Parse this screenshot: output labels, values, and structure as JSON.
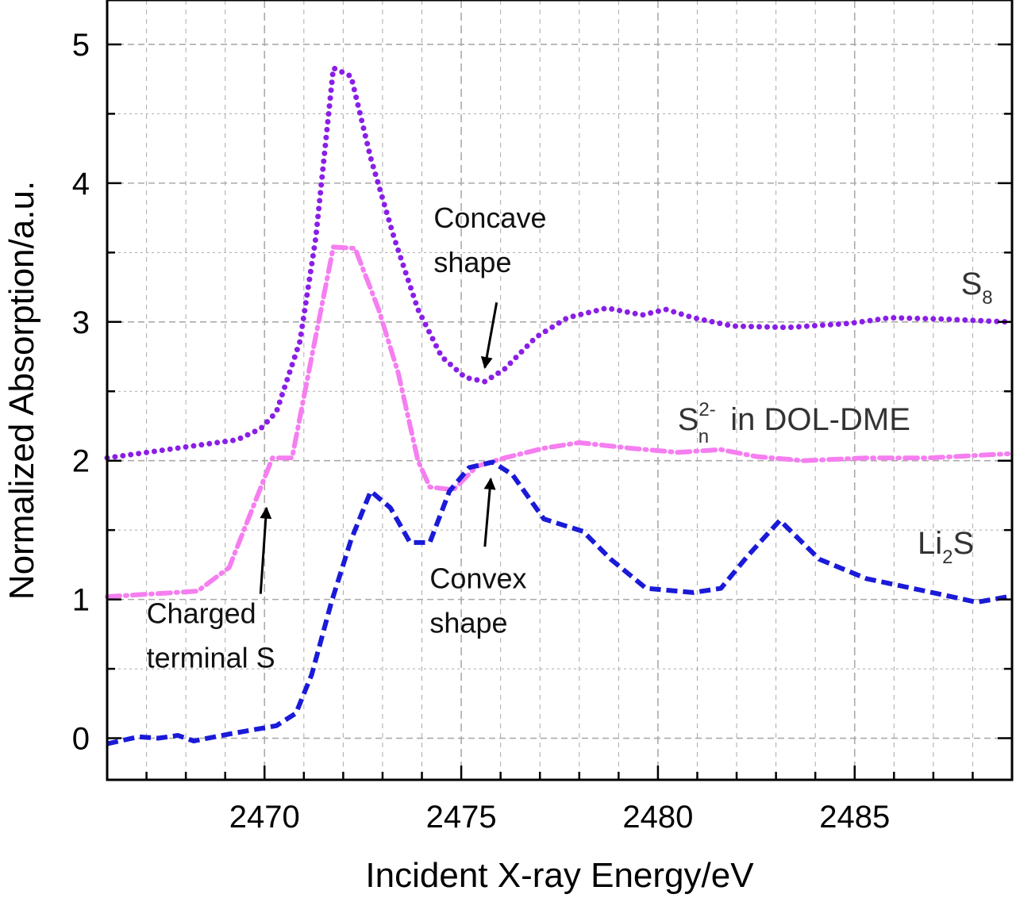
{
  "chart_data": {
    "type": "line",
    "xlabel": "Incident X-ray Energy/eV",
    "ylabel": "Normalized Absorption/a.u.",
    "xlim": [
      2466,
      2489
    ],
    "ylim": [
      -0.3,
      5.32
    ],
    "xticks": [
      2470,
      2475,
      2480,
      2485
    ],
    "yticks": [
      0,
      1,
      2,
      3,
      4,
      5
    ],
    "grid": true,
    "series": [
      {
        "name": "S8",
        "color": "#8a1ee6",
        "style": "dotted",
        "x": [
          2466,
          2469.3,
          2469.9,
          2470.3,
          2470.9,
          2471.3,
          2471.75,
          2472.2,
          2472.7,
          2473.3,
          2473.9,
          2474.5,
          2475.1,
          2475.6,
          2476.1,
          2476.9,
          2477.7,
          2478.7,
          2479.6,
          2480.2,
          2480.9,
          2481.9,
          2483.3,
          2484.9,
          2485.9,
          2487.3,
          2488.9
        ],
        "y": [
          2.02,
          2.15,
          2.23,
          2.35,
          2.86,
          3.6,
          4.83,
          4.77,
          4.18,
          3.6,
          3.09,
          2.75,
          2.6,
          2.57,
          2.66,
          2.89,
          3.03,
          3.1,
          3.05,
          3.09,
          3.03,
          2.97,
          2.96,
          2.99,
          3.03,
          3.02,
          3.0
        ]
      },
      {
        "name": "Sn2- in DOL-DME",
        "color": "#f57ef0",
        "style": "dashdot",
        "x": [
          2466,
          2468.3,
          2469.1,
          2469.7,
          2470.2,
          2470.7,
          2471.2,
          2471.75,
          2472.3,
          2472.9,
          2473.4,
          2473.9,
          2474.2,
          2474.8,
          2475.4,
          2476.1,
          2477.1,
          2478.0,
          2479.3,
          2480.5,
          2481.6,
          2482.5,
          2483.7,
          2485.3,
          2486.9,
          2488.9
        ],
        "y": [
          1.02,
          1.06,
          1.23,
          1.66,
          2.02,
          2.02,
          2.75,
          3.54,
          3.53,
          3.09,
          2.63,
          2.0,
          1.81,
          1.79,
          1.96,
          2.02,
          2.09,
          2.13,
          2.09,
          2.06,
          2.08,
          2.03,
          2.0,
          2.02,
          2.02,
          2.05
        ]
      },
      {
        "name": "Li2S",
        "color": "#1a1ad8",
        "style": "dashed",
        "x": [
          2466,
          2466.8,
          2467.3,
          2467.8,
          2468.2,
          2469.1,
          2469.9,
          2470.3,
          2470.8,
          2471.2,
          2471.7,
          2472.2,
          2472.7,
          2473.2,
          2473.7,
          2474.2,
          2474.7,
          2475.2,
          2475.8,
          2476.3,
          2477.1,
          2478.1,
          2478.8,
          2479.7,
          2480.9,
          2481.6,
          2482.3,
          2483.1,
          2484.1,
          2485.3,
          2486.3,
          2487.3,
          2488.1,
          2488.9
        ],
        "y": [
          -0.04,
          0.01,
          0,
          0.02,
          -0.02,
          0.03,
          0.07,
          0.09,
          0.18,
          0.46,
          0.98,
          1.43,
          1.78,
          1.66,
          1.41,
          1.41,
          1.78,
          1.95,
          1.99,
          1.9,
          1.58,
          1.49,
          1.29,
          1.08,
          1.05,
          1.08,
          1.32,
          1.57,
          1.29,
          1.15,
          1.09,
          1.03,
          0.98,
          1.02
        ]
      }
    ],
    "series_labels": [
      {
        "main": "S",
        "sub": "8",
        "x": 2487.7,
        "y": 3.2
      },
      {
        "main": "S",
        "sub": "n",
        "sup": "2-",
        "rest": " in DOL-DME",
        "x": 2480.5,
        "y": 2.22
      },
      {
        "main": "Li",
        "sub": "2",
        "rest": "S",
        "x": 2486.6,
        "y": 1.33
      }
    ],
    "annotations": [
      {
        "lines": [
          "Concave",
          "shape"
        ],
        "x": 2474.3,
        "y": 3.68,
        "arrow_from": [
          2475.9,
          3.14
        ],
        "arrow_to": [
          2475.6,
          2.67
        ]
      },
      {
        "lines": [
          "Convex",
          "shape"
        ],
        "x": 2474.2,
        "y": 1.08,
        "arrow_from": [
          2475.6,
          1.38
        ],
        "arrow_to": [
          2475.75,
          1.87
        ]
      },
      {
        "lines": [
          "Charged",
          "terminal S"
        ],
        "x": 2467.0,
        "y": 0.83,
        "arrow_from": [
          2469.9,
          1.04
        ],
        "arrow_to": [
          2470.05,
          1.66
        ]
      }
    ]
  }
}
